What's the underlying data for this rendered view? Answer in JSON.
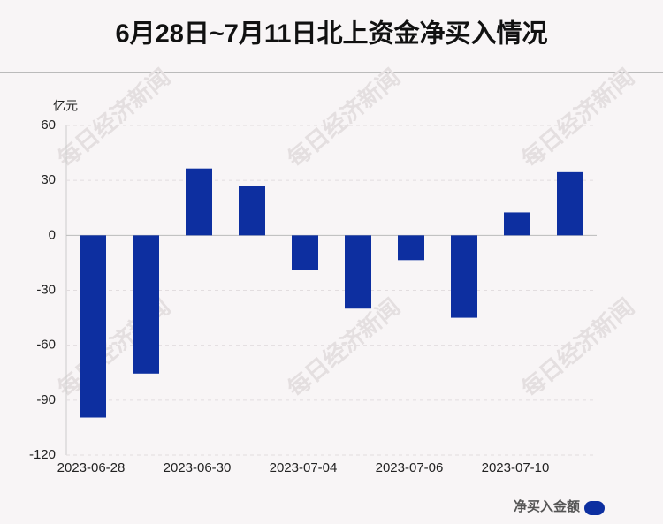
{
  "chart_data": {
    "type": "bar",
    "title": "6月28日~7月11日北上资金净买入情况",
    "y_label": "亿元",
    "watermark": "每日经济新闻",
    "categories": [
      "2023-06-28",
      null,
      "2023-06-30",
      null,
      "2023-07-04",
      null,
      "2023-07-06",
      null,
      "2023-07-10",
      null
    ],
    "series": [
      {
        "name": "净买入金额",
        "color": "#0d2fa0",
        "values": [
          -99.5,
          -75.5,
          36.5,
          27,
          -19,
          -40,
          -13.5,
          -45,
          12.5,
          34.5
        ]
      }
    ],
    "ylim": [
      -120,
      60
    ],
    "yticks": [
      -120,
      -90,
      -60,
      -30,
      0,
      30,
      60
    ],
    "grid": true,
    "legend": "bottom-right"
  }
}
